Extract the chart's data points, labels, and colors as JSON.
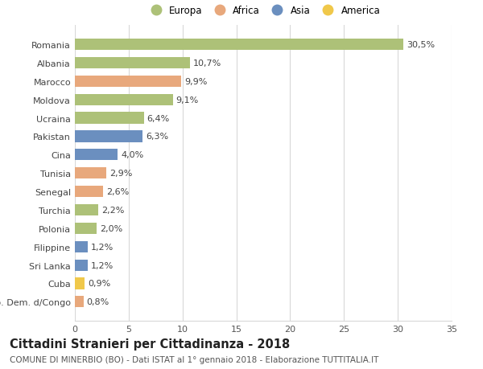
{
  "countries": [
    "Romania",
    "Albania",
    "Marocco",
    "Moldova",
    "Ucraina",
    "Pakistan",
    "Cina",
    "Tunisia",
    "Senegal",
    "Turchia",
    "Polonia",
    "Filippine",
    "Sri Lanka",
    "Cuba",
    "Rep. Dem. d/Congo"
  ],
  "values": [
    30.5,
    10.7,
    9.9,
    9.1,
    6.4,
    6.3,
    4.0,
    2.9,
    2.6,
    2.2,
    2.0,
    1.2,
    1.2,
    0.9,
    0.8
  ],
  "labels": [
    "30,5%",
    "10,7%",
    "9,9%",
    "9,1%",
    "6,4%",
    "6,3%",
    "4,0%",
    "2,9%",
    "2,6%",
    "2,2%",
    "2,0%",
    "1,2%",
    "1,2%",
    "0,9%",
    "0,8%"
  ],
  "continents": [
    "Europa",
    "Europa",
    "Africa",
    "Europa",
    "Europa",
    "Asia",
    "Asia",
    "Africa",
    "Africa",
    "Europa",
    "Europa",
    "Asia",
    "Asia",
    "America",
    "Africa"
  ],
  "continent_colors": {
    "Europa": "#adc178",
    "Africa": "#e8a87c",
    "Asia": "#6b8fbf",
    "America": "#f0c84a"
  },
  "legend_order": [
    "Europa",
    "Africa",
    "Asia",
    "America"
  ],
  "title": "Cittadini Stranieri per Cittadinanza - 2018",
  "subtitle": "COMUNE DI MINERBIO (BO) - Dati ISTAT al 1° gennaio 2018 - Elaborazione TUTTITALIA.IT",
  "xlim": [
    0,
    35
  ],
  "xticks": [
    0,
    5,
    10,
    15,
    20,
    25,
    30,
    35
  ],
  "background_color": "#ffffff",
  "grid_color": "#d8d8d8",
  "bar_height": 0.62,
  "label_fontsize": 8,
  "tick_fontsize": 8,
  "title_fontsize": 10.5,
  "subtitle_fontsize": 7.5
}
